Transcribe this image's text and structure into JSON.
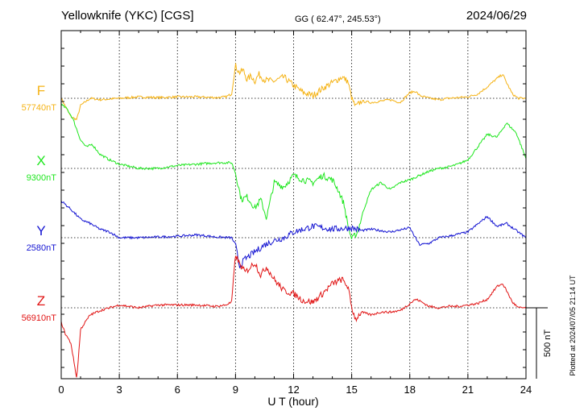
{
  "header": {
    "station": "Yellowknife (YKC)  [CGS]",
    "coords": "GG ( 62.47°, 245.53°)",
    "date": "2024/06/29"
  },
  "plot_stamp": "Plotted at 2024/07/05 21:14 UT",
  "scale_label": "500 nT",
  "chart_data": {
    "type": "line",
    "xlabel": "U T (hour)",
    "xlim": [
      0,
      24
    ],
    "xticks": [
      "0",
      "3",
      "6",
      "9",
      "12",
      "15",
      "18",
      "21",
      "24"
    ],
    "grid": true,
    "scale_bar_nT": 500,
    "colors": {
      "F": "#f5b316",
      "X": "#1ee61e",
      "Y": "#1414d2",
      "Z": "#e11414"
    },
    "series": [
      {
        "name": "F",
        "baseline_label": "57740nT",
        "baseline_nT": 57740,
        "x": [
          0,
          0.3,
          0.5,
          0.8,
          1,
          1.5,
          2,
          3,
          4,
          5,
          6,
          7,
          8,
          8.5,
          8.8,
          9,
          9.2,
          9.4,
          9.6,
          9.8,
          10,
          10.2,
          10.5,
          11,
          11.5,
          12,
          12.5,
          13,
          13.5,
          14,
          14.5,
          14.8,
          15,
          15.2,
          15.5,
          16,
          16.5,
          17,
          17.5,
          18,
          18.3,
          18.5,
          19,
          19.5,
          20,
          20.5,
          21,
          21.5,
          22,
          22.5,
          22.8,
          23,
          23.3,
          23.6,
          24
        ],
        "values": [
          0,
          -80,
          -130,
          -150,
          -50,
          0,
          -10,
          0,
          10,
          5,
          10,
          10,
          5,
          10,
          30,
          230,
          180,
          200,
          130,
          160,
          120,
          170,
          130,
          120,
          150,
          90,
          40,
          20,
          70,
          110,
          150,
          120,
          0,
          -60,
          -20,
          -30,
          -20,
          -10,
          -30,
          40,
          50,
          20,
          0,
          -10,
          0,
          5,
          10,
          30,
          80,
          140,
          170,
          110,
          30,
          0,
          0
        ]
      },
      {
        "name": "X",
        "baseline_label": "9300nT",
        "baseline_nT": 9300,
        "x": [
          0,
          0.3,
          0.6,
          1,
          1.3,
          1.6,
          2,
          2.5,
          3,
          4,
          5,
          6,
          7,
          8,
          8.8,
          9,
          9.3,
          9.6,
          10,
          10.3,
          10.6,
          11,
          11.5,
          12,
          12.5,
          13,
          13.5,
          14,
          14.3,
          14.6,
          14.8,
          15,
          15.3,
          15.6,
          16,
          16.5,
          17,
          17.5,
          18,
          18.5,
          19,
          19.5,
          20,
          20.5,
          21,
          21.5,
          22,
          22.5,
          23,
          23.5,
          24
        ],
        "values": [
          450,
          420,
          350,
          200,
          150,
          170,
          100,
          60,
          30,
          0,
          0,
          20,
          30,
          40,
          40,
          -30,
          -220,
          -200,
          -280,
          -220,
          -350,
          -100,
          -130,
          -50,
          -80,
          -100,
          -50,
          -80,
          -150,
          -250,
          -400,
          -500,
          -450,
          -300,
          -150,
          -100,
          -150,
          -100,
          -80,
          -50,
          -20,
          0,
          10,
          30,
          60,
          150,
          240,
          220,
          320,
          250,
          70
        ]
      },
      {
        "name": "Y",
        "baseline_label": "2580nT",
        "baseline_nT": 2580,
        "x": [
          0,
          0.5,
          1,
          1.5,
          2,
          2.5,
          3,
          4,
          5,
          6,
          7,
          8,
          8.8,
          9,
          9.2,
          9.5,
          10,
          10.5,
          11,
          11.5,
          12,
          12.5,
          13,
          14,
          15,
          15.5,
          16,
          17,
          18,
          18.5,
          19,
          19.5,
          20,
          21,
          22,
          22.5,
          23,
          23.5,
          24
        ],
        "values": [
          260,
          200,
          130,
          100,
          60,
          40,
          0,
          0,
          5,
          10,
          20,
          5,
          0,
          -50,
          -200,
          -150,
          -100,
          -50,
          -20,
          0,
          40,
          60,
          80,
          60,
          70,
          50,
          60,
          40,
          70,
          -50,
          -40,
          0,
          10,
          40,
          150,
          80,
          100,
          50,
          0
        ]
      },
      {
        "name": "Z",
        "baseline_label": "56910nT",
        "baseline_nT": 56910,
        "x": [
          0,
          0.2,
          0.5,
          0.8,
          1,
          1.5,
          2,
          3,
          4,
          5,
          6,
          7,
          8,
          8.5,
          8.8,
          9,
          9.2,
          9.5,
          10,
          10.3,
          10.6,
          11,
          11.5,
          12,
          12.5,
          13,
          13.5,
          14,
          14.5,
          14.8,
          15,
          15.2,
          15.5,
          16,
          16.5,
          17,
          17.5,
          18,
          18.3,
          18.5,
          19,
          19.5,
          20,
          20.5,
          21,
          21.5,
          22,
          22.5,
          22.8,
          23,
          23.3,
          23.6,
          24
        ],
        "values": [
          -100,
          -180,
          -250,
          -500,
          -150,
          -50,
          -20,
          20,
          0,
          20,
          20,
          20,
          10,
          20,
          40,
          380,
          310,
          250,
          320,
          230,
          290,
          200,
          120,
          100,
          50,
          40,
          100,
          170,
          200,
          150,
          0,
          -80,
          -30,
          -50,
          -30,
          -30,
          -20,
          30,
          60,
          50,
          10,
          0,
          10,
          10,
          20,
          30,
          60,
          150,
          170,
          120,
          40,
          0,
          0
        ]
      }
    ]
  }
}
